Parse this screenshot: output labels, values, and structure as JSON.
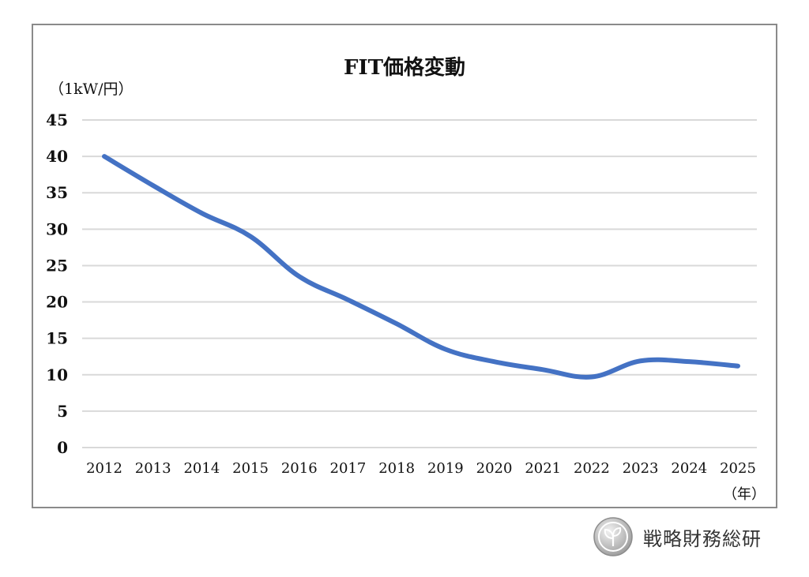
{
  "chart_data": {
    "type": "line",
    "title": "FIT価格変動",
    "ylabel": "（1kW/円）",
    "xlabel": "（年）",
    "ylim": [
      0,
      45
    ],
    "yticks": [
      0,
      5,
      10,
      15,
      20,
      25,
      30,
      35,
      40,
      45
    ],
    "categories": [
      "2012",
      "2013",
      "2014",
      "2015",
      "2016",
      "2017",
      "2018",
      "2019",
      "2020",
      "2021",
      "2022",
      "2023",
      "2024",
      "2025"
    ],
    "series": [
      {
        "values": [
          40,
          36,
          32.2,
          29,
          23.5,
          20.3,
          17,
          13.5,
          11.8,
          10.7,
          9.7,
          11.9,
          11.8,
          11.2
        ],
        "color": "#4472C4"
      }
    ],
    "grid": true,
    "legend": "none"
  },
  "brand": {
    "name": "戦略財務総研",
    "logo_icon": "leaf-circle-icon"
  }
}
